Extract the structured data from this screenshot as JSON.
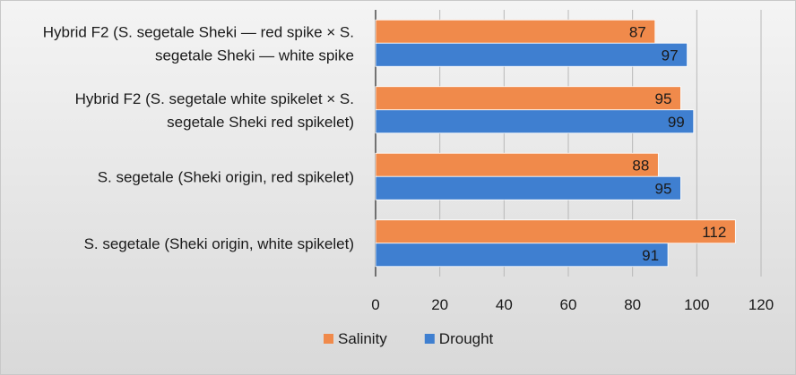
{
  "chart_data": {
    "type": "bar",
    "orientation": "horizontal",
    "title": "",
    "xlabel": "",
    "ylabel": "",
    "categories": [
      [
        "Hybrid F2 (S. segetale Sheki — red spike × S.",
        "segetale Sheki — white spike"
      ],
      [
        "Hybrid F2 (S. segetale white spikelet × S.",
        "segetale Sheki red spikelet)"
      ],
      [
        "S. segetale (Sheki origin, red spikelet)"
      ],
      [
        "S. segetale (Sheki origin, white spikelet)"
      ]
    ],
    "series": [
      {
        "name": "Salinity",
        "color": "#f08a4b",
        "values": [
          87,
          95,
          88,
          112
        ]
      },
      {
        "name": "Drought",
        "color": "#3f7fd0",
        "values": [
          97,
          99,
          95,
          91
        ]
      }
    ],
    "xlim": [
      0,
      120
    ],
    "xticks": [
      0,
      20,
      40,
      60,
      80,
      100,
      120
    ],
    "grid": true,
    "legend_position": "bottom",
    "data_labels": true
  }
}
